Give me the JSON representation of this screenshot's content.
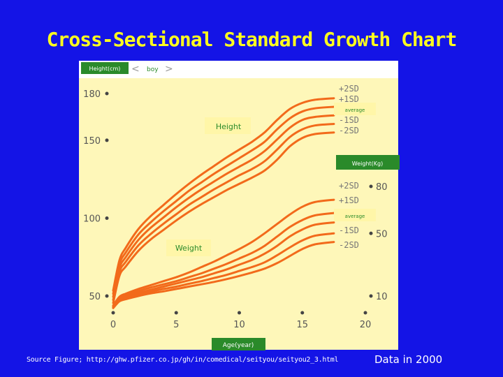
{
  "page": {
    "title": "Cross-Sectional Standard Growth Chart",
    "source": "Source Figure; http://ghw.pfizer.co.jp/gh/in/comedical/seityou/seityou2_3.html",
    "data_note": "Data in 2000"
  },
  "colors": {
    "background": "#1414e6",
    "title": "#ffff1e",
    "plot_bg": "#fef7b9",
    "paper": "#ffffff",
    "curve": "#f26a1b",
    "label_green": "#2a8a2a",
    "label_box": "#fff6a8"
  },
  "chart_data": {
    "type": "line",
    "top_labels": {
      "height_unit_tab": "Height(cm)",
      "sex_tag": "boy"
    },
    "x_axis": {
      "label": "Age(year)",
      "range": [
        0,
        20
      ],
      "ticks": [
        0,
        5,
        10,
        15,
        20
      ],
      "tick_labels": [
        "0",
        "5",
        "10",
        "15",
        "20"
      ]
    },
    "y_left": {
      "label": "Height(cm)",
      "range": [
        50,
        190
      ],
      "ticks": [
        50,
        100,
        150,
        180
      ],
      "tick_labels": [
        "50",
        "100",
        "150",
        "180"
      ]
    },
    "y_right": {
      "label": "Weight(Kg)",
      "range": [
        0,
        90
      ],
      "ticks": [
        10,
        50,
        80
      ],
      "tick_labels": [
        "10",
        "50",
        "80"
      ]
    },
    "groups": [
      {
        "name": "Height",
        "axis": "left",
        "series": [
          {
            "name": "+2SD",
            "x": [
              0,
              0.5,
              1,
              2,
              3,
              4,
              5,
              6,
              7,
              8,
              9,
              10,
              11,
              12,
              13,
              14,
              15,
              16,
              17.5
            ],
            "y": [
              53.5,
              73,
              81,
              93,
              101.5,
              108.5,
              115.5,
              122,
              128,
              133.5,
              139,
              144,
              149,
              155,
              163,
              170,
              174,
              176,
              177
            ]
          },
          {
            "name": "+1SD",
            "x": [
              0,
              0.5,
              1,
              2,
              3,
              4,
              5,
              6,
              7,
              8,
              9,
              10,
              11,
              12,
              13,
              14,
              15,
              16,
              17.5
            ],
            "y": [
              51.5,
              70.5,
              78,
              89.5,
              97.5,
              104.5,
              111,
              117.5,
              123,
              128.5,
              133.5,
              138.5,
              143.5,
              149,
              157,
              164,
              168.5,
              170.5,
              171.5
            ]
          },
          {
            "name": "average",
            "x": [
              0,
              0.5,
              1,
              2,
              3,
              4,
              5,
              6,
              7,
              8,
              9,
              10,
              11,
              12,
              13,
              14,
              15,
              16,
              17.5
            ],
            "y": [
              49.5,
              68,
              75,
              86,
              94,
              100.5,
              107,
              113,
              118.5,
              123.5,
              128.5,
              133,
              137.5,
              143,
              150.5,
              158,
              163,
              165,
              166
            ]
          },
          {
            "name": "-1SD",
            "x": [
              0,
              0.5,
              1,
              2,
              3,
              4,
              5,
              6,
              7,
              8,
              9,
              10,
              11,
              12,
              13,
              14,
              15,
              16,
              17.5
            ],
            "y": [
              47.5,
              65.5,
              72,
              82.5,
              90,
              96.5,
              102.5,
              108.5,
              113.5,
              118.5,
              123,
              127.5,
              131.5,
              136.5,
              144,
              152,
              157,
              159.5,
              160.5
            ]
          },
          {
            "name": "-2SD",
            "x": [
              0,
              0.5,
              1,
              2,
              3,
              4,
              5,
              6,
              7,
              8,
              9,
              10,
              11,
              12,
              13,
              14,
              15,
              16,
              17.5
            ],
            "y": [
              45.5,
              63,
              69,
              79,
              86.5,
              92.5,
              98.5,
              104,
              109,
              113.5,
              118,
              122,
              126,
              130.5,
              137.5,
              146,
              151.5,
              154,
              155
            ]
          }
        ]
      },
      {
        "name": "Weight",
        "axis": "right",
        "series": [
          {
            "name": "+2SD",
            "x": [
              0,
              0.5,
              1,
              2,
              3,
              4,
              5,
              6,
              7,
              8,
              9,
              10,
              11,
              12,
              13,
              14,
              15,
              16,
              17.5
            ],
            "y": [
              4,
              9.5,
              11.5,
              14.5,
              17,
              19.5,
              22,
              25,
              28.5,
              32,
              36,
              40,
              44.5,
              50,
              56,
              62,
              67,
              70,
              71.5
            ]
          },
          {
            "name": "+1SD",
            "x": [
              0,
              0.5,
              1,
              2,
              3,
              4,
              5,
              6,
              7,
              8,
              9,
              10,
              11,
              12,
              13,
              14,
              15,
              16,
              17.5
            ],
            "y": [
              3.5,
              8.8,
              10.5,
              13.2,
              15.5,
              17.5,
              19.5,
              22,
              24.5,
              27.5,
              30.5,
              34,
              37.5,
              42,
              48,
              54,
              58.5,
              61.5,
              63
            ]
          },
          {
            "name": "average",
            "x": [
              0,
              0.5,
              1,
              2,
              3,
              4,
              5,
              6,
              7,
              8,
              9,
              10,
              11,
              12,
              13,
              14,
              15,
              16,
              17.5
            ],
            "y": [
              3,
              8,
              9.5,
              12,
              14,
              16,
              18,
              20,
              22,
              24.5,
              27,
              30,
              33,
              37,
              42,
              48,
              52.5,
              55.5,
              57
            ]
          },
          {
            "name": "-1SD",
            "x": [
              0,
              0.5,
              1,
              2,
              3,
              4,
              5,
              6,
              7,
              8,
              9,
              10,
              11,
              12,
              13,
              14,
              15,
              16,
              17.5
            ],
            "y": [
              2.7,
              7.3,
              8.8,
              11,
              12.8,
              14.5,
              16,
              17.8,
              19.5,
              21.5,
              23.5,
              26,
              28.5,
              31.5,
              36,
              41,
              45.5,
              48.5,
              50
            ]
          },
          {
            "name": "-2SD",
            "x": [
              0,
              0.5,
              1,
              2,
              3,
              4,
              5,
              6,
              7,
              8,
              9,
              10,
              11,
              12,
              13,
              14,
              15,
              16,
              17.5
            ],
            "y": [
              2.3,
              6.6,
              8,
              10,
              11.7,
              13,
              14.5,
              16,
              17.5,
              19,
              20.8,
              22.8,
              25,
              27.5,
              31,
              35.5,
              40,
              43,
              44.5
            ]
          }
        ]
      }
    ],
    "curve_labels": {
      "height": [
        "+2SD",
        "+1SD",
        "average",
        "-1SD",
        "-2SD"
      ],
      "weight": [
        "+2SD",
        "+1SD",
        "average",
        "-1SD",
        "-2SD"
      ]
    },
    "group_labels": {
      "height": "Height",
      "weight": "Weight"
    },
    "grid": false
  }
}
